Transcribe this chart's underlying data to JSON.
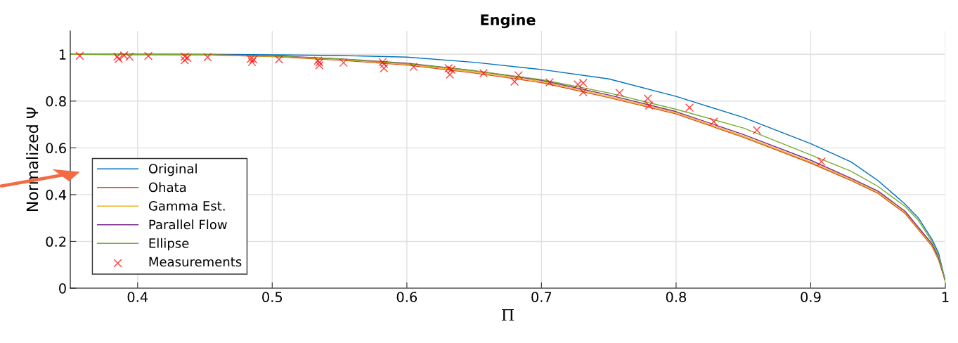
{
  "chart_data": {
    "type": "line",
    "title": "Engine",
    "xlabel": "Π",
    "ylabel": "Normalized Ψ",
    "xlim": [
      0.35,
      1
    ],
    "ylim": [
      0,
      1.1
    ],
    "xticks": [
      0.4,
      0.5,
      0.6,
      0.7,
      0.8,
      0.9,
      1
    ],
    "yticks": [
      0,
      0.2,
      0.4,
      0.6,
      0.8,
      1
    ],
    "grid": true,
    "legend": "bottom left",
    "marker": "none",
    "line_style": "solid",
    "series": [
      {
        "name": "Original",
        "color": "#0072bd",
        "x": [
          0.35,
          0.45,
          0.5,
          0.55,
          0.6,
          0.65,
          0.7,
          0.75,
          0.8,
          0.85,
          0.9,
          0.93,
          0.95,
          0.97,
          0.98,
          0.99,
          0.995,
          1.0
        ],
        "values": [
          1,
          1,
          0.998,
          0.995,
          0.988,
          0.966,
          0.935,
          0.895,
          0.82,
          0.73,
          0.618,
          0.54,
          0.46,
          0.36,
          0.3,
          0.21,
          0.15,
          0.03
        ]
      },
      {
        "name": "Ohata",
        "color": "#d95319",
        "x": [
          0.35,
          0.45,
          0.5,
          0.55,
          0.6,
          0.65,
          0.7,
          0.75,
          0.8,
          0.85,
          0.9,
          0.93,
          0.95,
          0.97,
          0.98,
          0.99,
          0.995,
          1.0
        ],
        "values": [
          1,
          0.998,
          0.99,
          0.975,
          0.954,
          0.92,
          0.879,
          0.815,
          0.745,
          0.645,
          0.535,
          0.46,
          0.405,
          0.32,
          0.25,
          0.18,
          0.12,
          0.03
        ]
      },
      {
        "name": "Gamma Est.",
        "color": "#edb120",
        "x": [
          0.35,
          0.45,
          0.5,
          0.55,
          0.6,
          0.65,
          0.7,
          0.75,
          0.8,
          0.85,
          0.9,
          0.93,
          0.95,
          0.97,
          0.98,
          0.99,
          0.995,
          1.0
        ],
        "values": [
          1,
          0.998,
          0.992,
          0.978,
          0.958,
          0.925,
          0.884,
          0.82,
          0.75,
          0.65,
          0.54,
          0.465,
          0.41,
          0.325,
          0.255,
          0.185,
          0.125,
          0.03
        ]
      },
      {
        "name": "Parallel Flow",
        "color": "#7e2f8e",
        "x": [
          0.35,
          0.45,
          0.5,
          0.55,
          0.6,
          0.65,
          0.7,
          0.75,
          0.8,
          0.85,
          0.9,
          0.93,
          0.95,
          0.97,
          0.98,
          0.99,
          0.995,
          1.0
        ],
        "values": [
          1,
          0.999,
          0.994,
          0.981,
          0.962,
          0.93,
          0.889,
          0.826,
          0.755,
          0.657,
          0.547,
          0.47,
          0.415,
          0.33,
          0.26,
          0.19,
          0.13,
          0.03
        ]
      },
      {
        "name": "Ellipse",
        "color": "#77ac30",
        "x": [
          0.35,
          0.45,
          0.5,
          0.55,
          0.6,
          0.65,
          0.7,
          0.75,
          0.8,
          0.85,
          0.9,
          0.93,
          0.95,
          0.97,
          0.98,
          0.99,
          0.995,
          1.0
        ],
        "values": [
          1,
          0.999,
          0.993,
          0.98,
          0.96,
          0.93,
          0.892,
          0.835,
          0.765,
          0.685,
          0.57,
          0.5,
          0.435,
          0.35,
          0.29,
          0.2,
          0.14,
          0.03
        ]
      },
      {
        "name": "Measurements",
        "type": "scatter",
        "marker": "cross",
        "color": "#ff0000",
        "x": [
          0.357,
          0.385,
          0.386,
          0.39,
          0.394,
          0.408,
          0.435,
          0.435,
          0.437,
          0.452,
          0.484,
          0.485,
          0.486,
          0.505,
          0.534,
          0.535,
          0.535,
          0.553,
          0.582,
          0.583,
          0.583,
          0.605,
          0.631,
          0.632,
          0.633,
          0.657,
          0.683,
          0.68,
          0.706,
          0.727,
          0.731,
          0.731,
          0.758,
          0.779,
          0.78,
          0.81,
          0.828,
          0.86,
          0.908
        ],
        "values": [
          0.994,
          0.99,
          0.98,
          0.995,
          0.99,
          0.993,
          0.99,
          0.975,
          0.985,
          0.988,
          0.98,
          0.967,
          0.978,
          0.978,
          0.973,
          0.953,
          0.965,
          0.964,
          0.967,
          0.94,
          0.958,
          0.946,
          0.94,
          0.913,
          0.934,
          0.919,
          0.91,
          0.883,
          0.88,
          0.871,
          0.877,
          0.838,
          0.835,
          0.811,
          0.781,
          0.772,
          0.712,
          0.676,
          0.541
        ]
      }
    ]
  }
}
